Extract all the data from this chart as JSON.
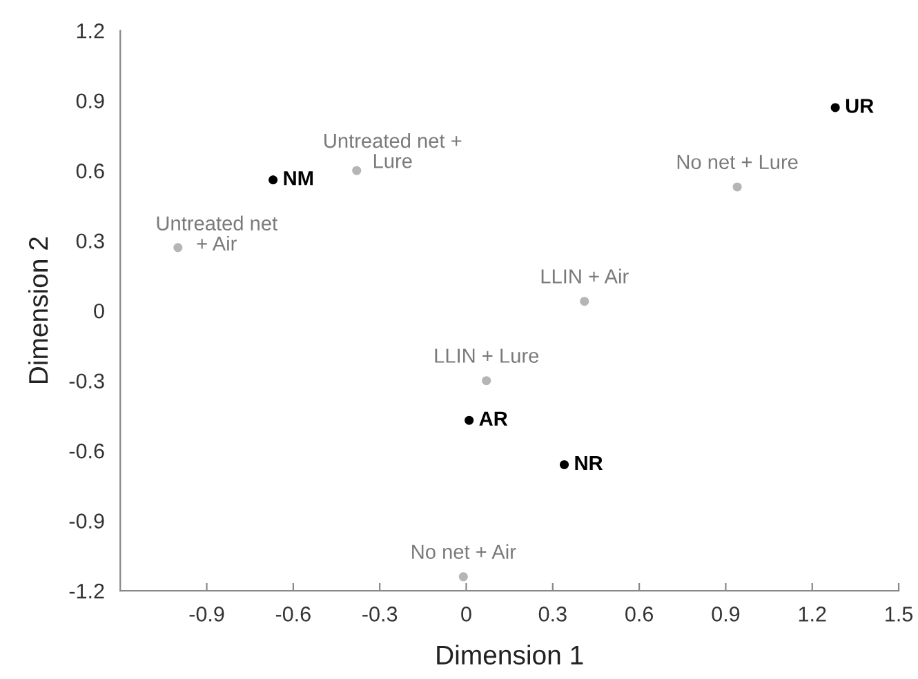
{
  "chart_data": {
    "type": "scatter",
    "xlabel": "Dimension 1",
    "ylabel": "Dimension 2",
    "xlim": [
      -1.2,
      1.5
    ],
    "xticks": [
      -0.9,
      -0.6,
      -0.3,
      0,
      0.3,
      0.6,
      0.9,
      1.2,
      1.5
    ],
    "ylim": [
      -1.2,
      1.2
    ],
    "yticks": [
      -1.2,
      -0.9,
      -0.6,
      -0.3,
      0,
      0.3,
      0.6,
      0.9,
      1.2
    ],
    "grid": false,
    "legend": false,
    "marker": "circle",
    "series": [
      {
        "color": "#000000",
        "x": [
          1.28,
          -0.67,
          0.01,
          0.34
        ],
        "values": [
          0.87,
          0.56,
          -0.47,
          -0.66
        ]
      },
      {
        "color": "#b5b5b5",
        "x": [
          -0.38,
          -1.0,
          0.94,
          0.41,
          0.07,
          -0.01
        ],
        "values": [
          0.6,
          0.27,
          0.53,
          0.04,
          -0.3,
          -1.14
        ]
      }
    ],
    "annotations": [
      {
        "text": "UR",
        "x": 1.28,
        "y": 0.87
      },
      {
        "text": "NM",
        "x": -0.67,
        "y": 0.56
      },
      {
        "text": "AR",
        "x": 0.01,
        "y": -0.47
      },
      {
        "text": "NR",
        "x": 0.34,
        "y": -0.66
      },
      {
        "text": "Untreated net +\nLure",
        "x": -0.38,
        "y": 0.6
      },
      {
        "text": "Untreated net\n+ Air",
        "x": -1.0,
        "y": 0.27
      },
      {
        "text": "No net + Lure",
        "x": 0.94,
        "y": 0.53
      },
      {
        "text": "LLIN + Air",
        "x": 0.41,
        "y": 0.04
      },
      {
        "text": "LLIN + Lure",
        "x": 0.07,
        "y": -0.3
      },
      {
        "text": "No net + Air",
        "x": -0.01,
        "y": -1.14
      }
    ]
  }
}
